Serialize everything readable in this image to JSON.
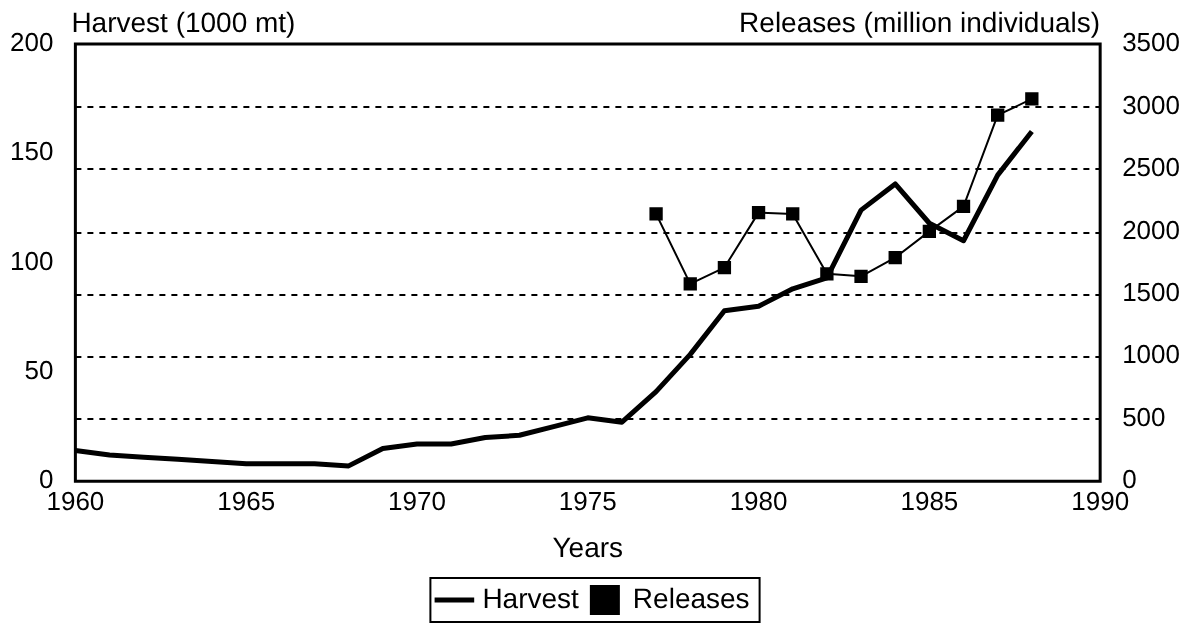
{
  "chart_data": {
    "type": "line",
    "xlabel": "Years",
    "ylabel": "Harvest (1000 mt)",
    "y2label": "Releases (million individuals)",
    "xlim": [
      1960,
      1990
    ],
    "xticks": [
      1960,
      1965,
      1970,
      1975,
      1980,
      1985,
      1990
    ],
    "ylim": [
      0,
      200
    ],
    "yticks": [
      0,
      50,
      100,
      150,
      200
    ],
    "y2lim": [
      0,
      3500
    ],
    "y2ticks": [
      0,
      500,
      1000,
      1500,
      2000,
      2500,
      3000,
      3500
    ],
    "grid": "y2",
    "legend": "bottom",
    "line_style": "solid",
    "series": [
      {
        "name": "Harvest",
        "color": "#000000",
        "marker": "none",
        "x": [
          1960,
          1961,
          1962,
          1963,
          1964,
          1965,
          1966,
          1967,
          1968,
          1969,
          1970,
          1971,
          1972,
          1973,
          1974,
          1975,
          1976,
          1977,
          1978,
          1979,
          1980,
          1981,
          1982,
          1983,
          1984,
          1985,
          1986,
          1987,
          1988
        ],
        "values": [
          14,
          12,
          11,
          10,
          9,
          8,
          8,
          8,
          7,
          15,
          17,
          17,
          20,
          21,
          25,
          29,
          27,
          41,
          58,
          78,
          80,
          88,
          93,
          124,
          136,
          118,
          110,
          140,
          160
        ]
      },
      {
        "name": "Releases",
        "color": "#000000",
        "marker": "square",
        "axis": "y2",
        "x": [
          1977,
          1978,
          1979,
          1980,
          1981,
          1982,
          1983,
          1984,
          1985,
          1986,
          1987,
          1988
        ],
        "values": [
          2140,
          1580,
          1710,
          2150,
          2140,
          1660,
          1640,
          1790,
          2000,
          2200,
          2930,
          3060
        ]
      }
    ]
  }
}
